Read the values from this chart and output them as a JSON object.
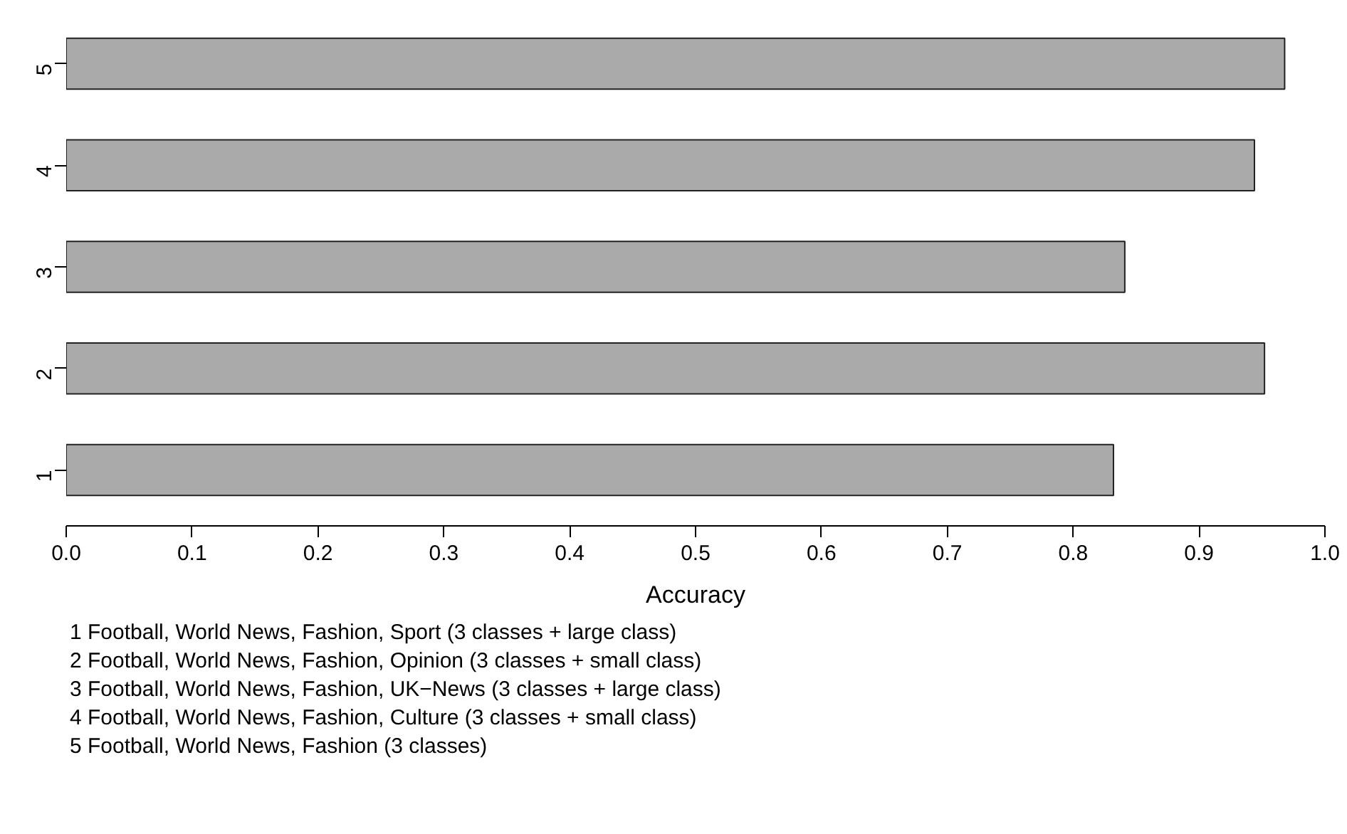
{
  "chart_data": {
    "type": "bar",
    "orientation": "horizontal",
    "categories": [
      "5",
      "4",
      "3",
      "2",
      "1"
    ],
    "values": [
      0.968,
      0.944,
      0.841,
      0.952,
      0.832
    ],
    "color": "#aaaaaa",
    "xlim": [
      0,
      1
    ],
    "xticks": [
      {
        "value": 0,
        "label": "0.0"
      },
      {
        "value": 0.1,
        "label": "0.1"
      },
      {
        "value": 0.2,
        "label": "0.2"
      },
      {
        "value": 0.3,
        "label": "0.3"
      },
      {
        "value": 0.4,
        "label": "0.4"
      },
      {
        "value": 0.5,
        "label": "0.5"
      },
      {
        "value": 0.6,
        "label": "0.6"
      },
      {
        "value": 0.7,
        "label": "0.7"
      },
      {
        "value": 0.8,
        "label": "0.8"
      },
      {
        "value": 0.9,
        "label": "0.9"
      },
      {
        "value": 1,
        "label": "1.0"
      }
    ],
    "xlabel": "Accuracy",
    "grid": false,
    "annotations": [
      "1 Football, World News, Fashion, Sport (3 classes + large class)",
      "2 Football, World News, Fashion, Opinion (3 classes + small class)",
      "3 Football, World News, Fashion, UK−News (3 classes + large class)",
      "4 Football, World News, Fashion, Culture (3 classes + small class)",
      "5 Football, World News, Fashion (3 classes)"
    ]
  }
}
